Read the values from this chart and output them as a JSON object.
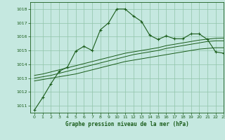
{
  "title": "Graphe pression niveau de la mer (hPa)",
  "bg_color": "#c5e8e0",
  "grid_color": "#90c4a8",
  "line_color": "#1a5c1a",
  "xlim": [
    -0.5,
    23
  ],
  "ylim": [
    1010.5,
    1018.5
  ],
  "yticks": [
    1011,
    1012,
    1013,
    1014,
    1015,
    1016,
    1017,
    1018
  ],
  "xticks": [
    0,
    1,
    2,
    3,
    4,
    5,
    6,
    7,
    8,
    9,
    10,
    11,
    12,
    13,
    14,
    15,
    16,
    17,
    18,
    19,
    20,
    21,
    22,
    23
  ],
  "line_main": {
    "x": [
      0,
      1,
      2,
      3,
      4,
      5,
      6,
      7,
      8,
      9,
      10,
      11,
      12,
      13,
      14,
      15,
      16,
      17,
      18,
      19,
      20,
      21,
      22,
      23
    ],
    "y": [
      1010.7,
      1011.6,
      1012.6,
      1013.5,
      1013.8,
      1014.95,
      1015.3,
      1015.0,
      1016.5,
      1017.0,
      1018.0,
      1018.0,
      1017.5,
      1017.1,
      1016.1,
      1015.8,
      1016.05,
      1015.85,
      1015.85,
      1016.2,
      1016.2,
      1015.8,
      1014.9,
      1014.8
    ]
  },
  "line_a": {
    "x": [
      0,
      1,
      2,
      3,
      4,
      5,
      6,
      7,
      8,
      9,
      10,
      11,
      12,
      13,
      14,
      15,
      16,
      17,
      18,
      19,
      20,
      21,
      22,
      23
    ],
    "y": [
      1012.8,
      1012.9,
      1013.0,
      1013.1,
      1013.2,
      1013.3,
      1013.45,
      1013.6,
      1013.75,
      1013.9,
      1014.05,
      1014.2,
      1014.3,
      1014.4,
      1014.5,
      1014.6,
      1014.7,
      1014.8,
      1014.9,
      1015.0,
      1015.1,
      1015.15,
      1015.2,
      1015.2
    ]
  },
  "line_b": {
    "x": [
      0,
      1,
      2,
      3,
      4,
      5,
      6,
      7,
      8,
      9,
      10,
      11,
      12,
      13,
      14,
      15,
      16,
      17,
      18,
      19,
      20,
      21,
      22,
      23
    ],
    "y": [
      1013.0,
      1013.1,
      1013.2,
      1013.35,
      1013.5,
      1013.65,
      1013.8,
      1013.95,
      1014.1,
      1014.25,
      1014.4,
      1014.55,
      1014.7,
      1014.8,
      1014.9,
      1015.0,
      1015.15,
      1015.25,
      1015.35,
      1015.45,
      1015.55,
      1015.65,
      1015.7,
      1015.7
    ]
  },
  "line_c": {
    "x": [
      0,
      1,
      2,
      3,
      4,
      5,
      6,
      7,
      8,
      9,
      10,
      11,
      12,
      13,
      14,
      15,
      16,
      17,
      18,
      19,
      20,
      21,
      22,
      23
    ],
    "y": [
      1013.2,
      1013.3,
      1013.45,
      1013.6,
      1013.75,
      1013.9,
      1014.05,
      1014.2,
      1014.35,
      1014.5,
      1014.65,
      1014.8,
      1014.9,
      1015.0,
      1015.1,
      1015.2,
      1015.35,
      1015.45,
      1015.55,
      1015.65,
      1015.75,
      1015.82,
      1015.88,
      1015.9
    ]
  }
}
